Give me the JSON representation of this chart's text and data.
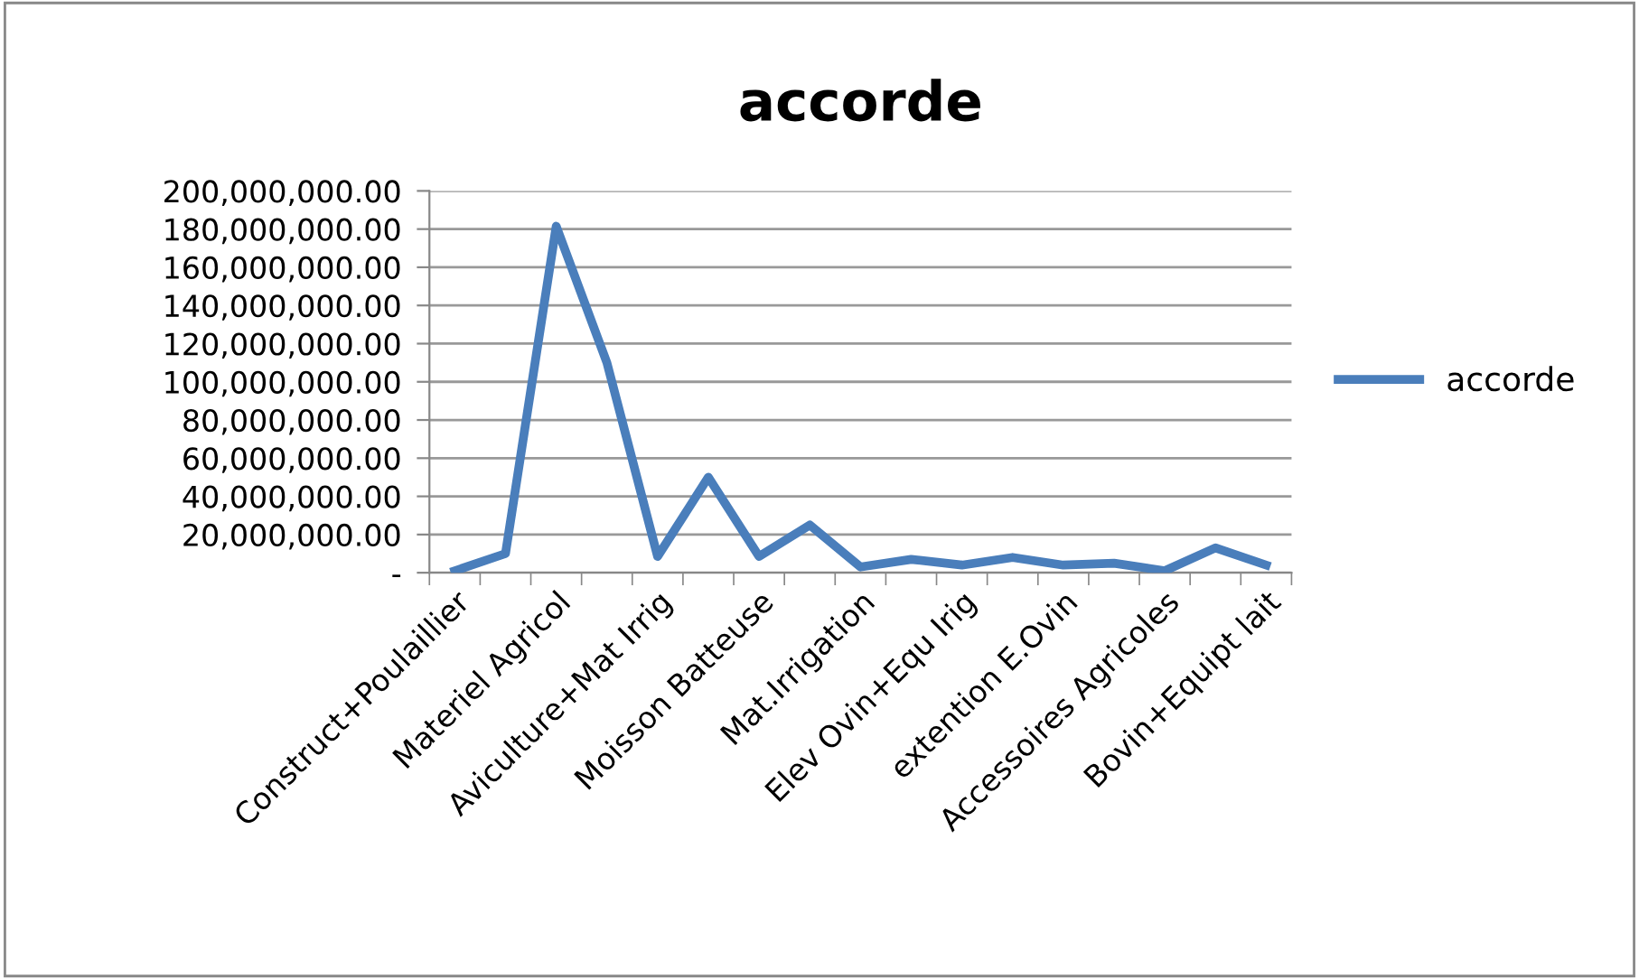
{
  "chart_data": {
    "type": "line",
    "title": "accorde",
    "categories": [
      "Construct+Poulaillier",
      null,
      "Materiel Agricol",
      null,
      "Aviculture+Mat Irrig",
      null,
      "Moisson Batteuse",
      null,
      "Mat.Irrigation",
      null,
      "Elev Ovin+Equ Irig",
      null,
      "extention E.Ovin",
      null,
      "Accessoires Agricoles",
      null,
      "Bovin+Equipt lait"
    ],
    "series": [
      {
        "name": "accorde",
        "color": "#4a7ebb",
        "values": [
          1000000,
          10000000,
          181500000,
          110000000,
          8500000,
          50000000,
          8500000,
          25000000,
          3000000,
          7000000,
          4000000,
          8000000,
          4000000,
          5000000,
          1000000,
          13000000,
          4000000
        ]
      }
    ],
    "ylim": [
      0,
      200000000
    ],
    "yticks": [
      {
        "value": 0,
        "label": "-"
      },
      {
        "value": 20000000,
        "label": "20,000,000.00"
      },
      {
        "value": 40000000,
        "label": "40,000,000.00"
      },
      {
        "value": 60000000,
        "label": "60,000,000.00"
      },
      {
        "value": 80000000,
        "label": "80,000,000.00"
      },
      {
        "value": 100000000,
        "label": "100,000,000.00"
      },
      {
        "value": 120000000,
        "label": "120,000,000.00"
      },
      {
        "value": 140000000,
        "label": "140,000,000.00"
      },
      {
        "value": 160000000,
        "label": "160,000,000.00"
      },
      {
        "value": 180000000,
        "label": "180,000,000.00"
      },
      {
        "value": 200000000,
        "label": "200,000,000.00"
      }
    ],
    "grid": "y",
    "legend": "right",
    "marker": "none",
    "line_style": "solid"
  }
}
